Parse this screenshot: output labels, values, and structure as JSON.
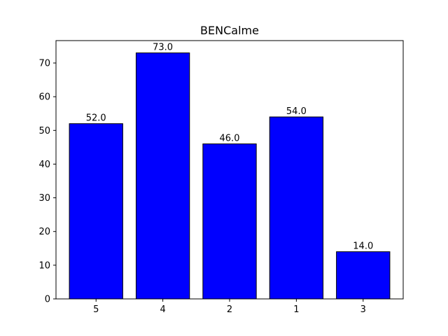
{
  "chart_data": {
    "type": "bar",
    "title": "BENCalme",
    "categories": [
      "5",
      "4",
      "2",
      "1",
      "3"
    ],
    "values": [
      52.0,
      73.0,
      46.0,
      54.0,
      14.0
    ],
    "data_labels": [
      "52.0",
      "73.0",
      "46.0",
      "54.0",
      "14.0"
    ],
    "yticks": [
      0,
      10,
      20,
      30,
      40,
      50,
      60,
      70
    ],
    "ytick_labels": [
      "0",
      "10",
      "20",
      "30",
      "40",
      "50",
      "60",
      "70"
    ],
    "ylim": [
      0,
      76.65
    ],
    "xlabel": "",
    "ylabel": "",
    "grid": false,
    "bar_color": "#0000ff",
    "bar_edge_color": "#000000"
  }
}
